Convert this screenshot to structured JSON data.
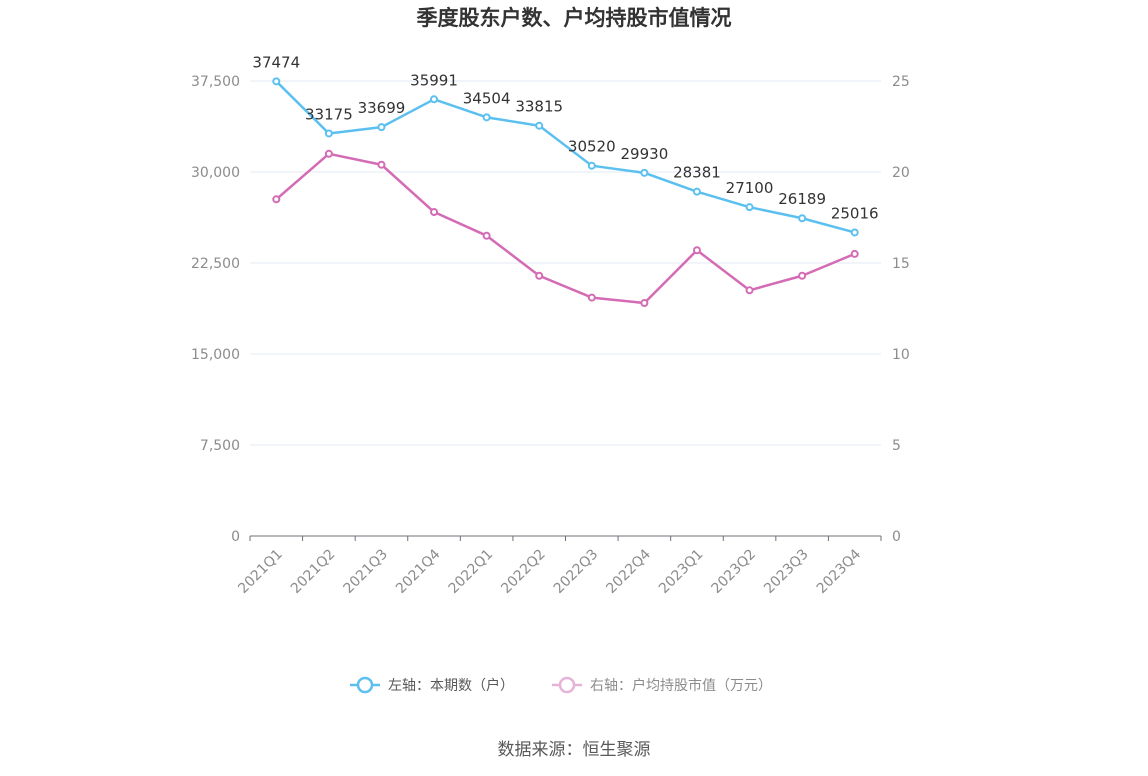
{
  "chart_data": {
    "type": "line",
    "title": "季度股东户数、户均持股市值情况",
    "categories": [
      "2021Q1",
      "2021Q2",
      "2021Q3",
      "2021Q4",
      "2022Q1",
      "2022Q2",
      "2022Q3",
      "2022Q4",
      "2023Q1",
      "2023Q2",
      "2023Q3",
      "2023Q4"
    ],
    "series": [
      {
        "name": "左轴：本期数（户）",
        "axis": "left",
        "color": "#5bc0f0",
        "values": [
          37474,
          33175,
          33699,
          35991,
          34504,
          33815,
          30520,
          29930,
          28381,
          27100,
          26189,
          25016
        ],
        "labels": [
          "37474",
          "33175",
          "33699",
          "35991",
          "34504",
          "33815",
          "30520",
          "29930",
          "28381",
          "27100",
          "26189",
          "25016"
        ]
      },
      {
        "name": "右轴：户均持股市值（万元）",
        "axis": "right",
        "color": "#d46bb4",
        "values": [
          18.5,
          21.0,
          20.4,
          17.8,
          16.5,
          14.3,
          13.1,
          12.8,
          15.7,
          13.5,
          14.3,
          15.5
        ]
      }
    ],
    "left_axis": {
      "min": 0,
      "max": 37500,
      "ticks": [
        0,
        7500,
        15000,
        22500,
        30000,
        37500
      ],
      "tick_labels": [
        "0",
        "7,500",
        "15,000",
        "22,500",
        "30,000",
        "37,500"
      ]
    },
    "right_axis": {
      "min": 0,
      "max": 25,
      "ticks": [
        0,
        5,
        10,
        15,
        20,
        25
      ],
      "tick_labels": [
        "0",
        "5",
        "10",
        "15",
        "20",
        "25"
      ]
    },
    "grid": true,
    "legend_position": "bottom"
  },
  "source_text": "数据来源：恒生聚源"
}
